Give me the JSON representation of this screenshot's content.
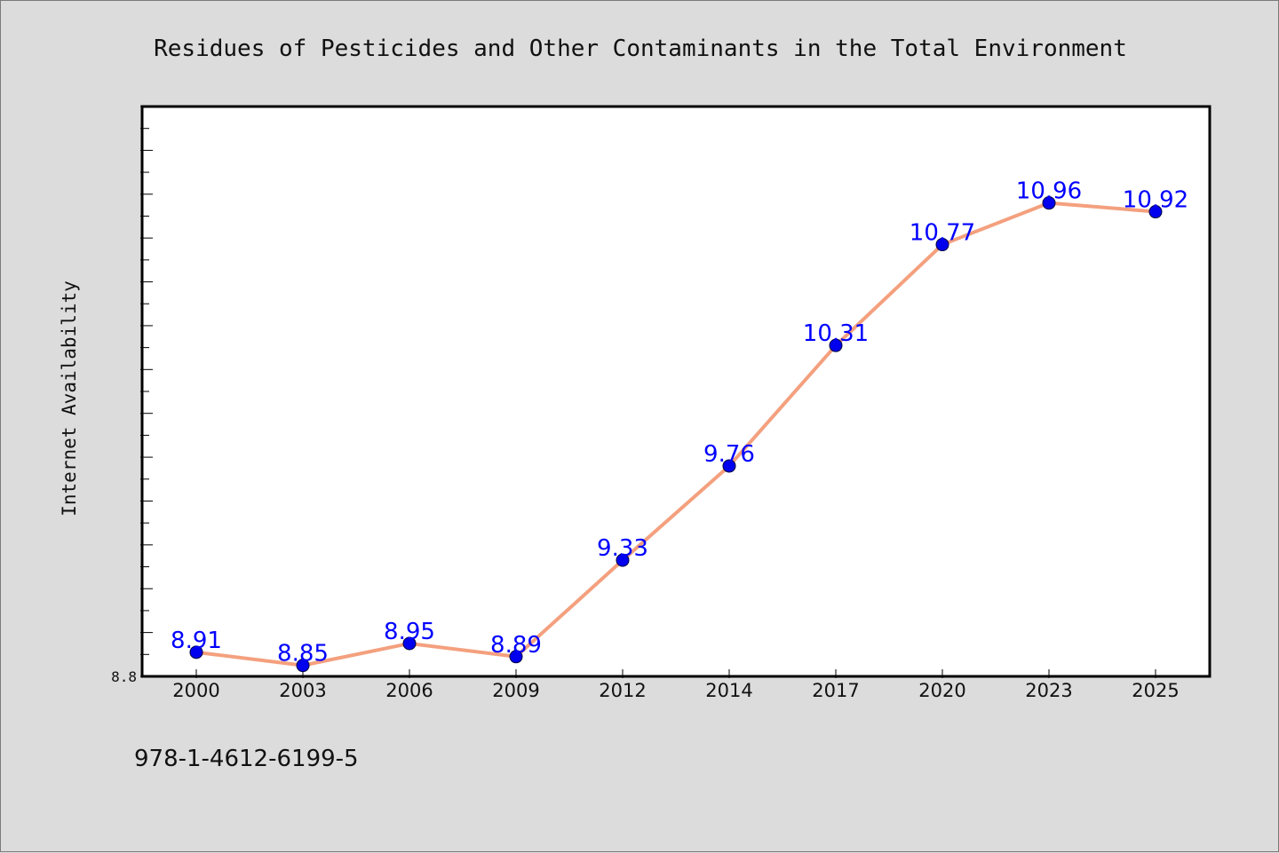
{
  "chart_data": {
    "type": "line",
    "title": "Residues of Pesticides and Other Contaminants in the Total Environment",
    "xlabel": "",
    "ylabel": "Internet Availability",
    "categories": [
      "2000",
      "2003",
      "2006",
      "2009",
      "2012",
      "2014",
      "2017",
      "2020",
      "2023",
      "2025"
    ],
    "values": [
      8.91,
      8.85,
      8.95,
      8.89,
      9.33,
      9.76,
      10.31,
      10.77,
      10.96,
      10.92
    ],
    "data_labels": [
      "8.91",
      "8.85",
      "8.95",
      "8.89",
      "9.33",
      "9.76",
      "10.31",
      "10.77",
      "10.96",
      "10.92"
    ],
    "ylim": [
      8.8,
      11.4
    ],
    "y_tick_labels": [
      "8.8"
    ],
    "grid": false,
    "line_color": "#f4a07e",
    "marker_color": "#0000ee",
    "label_color": "#0000ff"
  },
  "footer": {
    "isbn": "978-1-4612-6199-5"
  }
}
